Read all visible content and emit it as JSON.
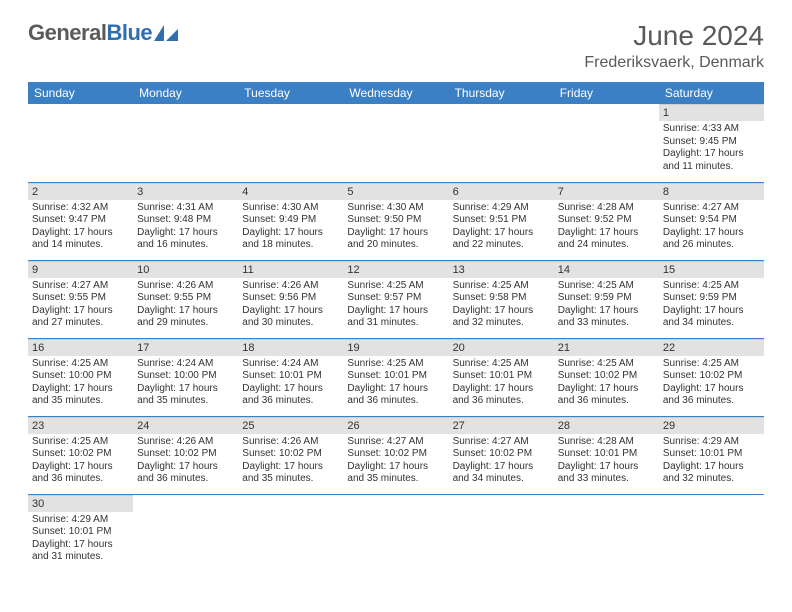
{
  "brand": {
    "part1": "General",
    "part2": "Blue"
  },
  "title": "June 2024",
  "location": "Frederiksvaerk, Denmark",
  "colors": {
    "header_bg": "#3b7fc4",
    "header_text": "#ffffff",
    "daynum_bg": "#e2e2e2",
    "body_text": "#333333",
    "title_text": "#5a5a5a",
    "rule": "#3b7fc4"
  },
  "weekdays": [
    "Sunday",
    "Monday",
    "Tuesday",
    "Wednesday",
    "Thursday",
    "Friday",
    "Saturday"
  ],
  "first_weekday_index": 6,
  "days": [
    {
      "n": 1,
      "sunrise": "4:33 AM",
      "sunset": "9:45 PM",
      "daylight": "17 hours and 11 minutes."
    },
    {
      "n": 2,
      "sunrise": "4:32 AM",
      "sunset": "9:47 PM",
      "daylight": "17 hours and 14 minutes."
    },
    {
      "n": 3,
      "sunrise": "4:31 AM",
      "sunset": "9:48 PM",
      "daylight": "17 hours and 16 minutes."
    },
    {
      "n": 4,
      "sunrise": "4:30 AM",
      "sunset": "9:49 PM",
      "daylight": "17 hours and 18 minutes."
    },
    {
      "n": 5,
      "sunrise": "4:30 AM",
      "sunset": "9:50 PM",
      "daylight": "17 hours and 20 minutes."
    },
    {
      "n": 6,
      "sunrise": "4:29 AM",
      "sunset": "9:51 PM",
      "daylight": "17 hours and 22 minutes."
    },
    {
      "n": 7,
      "sunrise": "4:28 AM",
      "sunset": "9:52 PM",
      "daylight": "17 hours and 24 minutes."
    },
    {
      "n": 8,
      "sunrise": "4:27 AM",
      "sunset": "9:54 PM",
      "daylight": "17 hours and 26 minutes."
    },
    {
      "n": 9,
      "sunrise": "4:27 AM",
      "sunset": "9:55 PM",
      "daylight": "17 hours and 27 minutes."
    },
    {
      "n": 10,
      "sunrise": "4:26 AM",
      "sunset": "9:55 PM",
      "daylight": "17 hours and 29 minutes."
    },
    {
      "n": 11,
      "sunrise": "4:26 AM",
      "sunset": "9:56 PM",
      "daylight": "17 hours and 30 minutes."
    },
    {
      "n": 12,
      "sunrise": "4:25 AM",
      "sunset": "9:57 PM",
      "daylight": "17 hours and 31 minutes."
    },
    {
      "n": 13,
      "sunrise": "4:25 AM",
      "sunset": "9:58 PM",
      "daylight": "17 hours and 32 minutes."
    },
    {
      "n": 14,
      "sunrise": "4:25 AM",
      "sunset": "9:59 PM",
      "daylight": "17 hours and 33 minutes."
    },
    {
      "n": 15,
      "sunrise": "4:25 AM",
      "sunset": "9:59 PM",
      "daylight": "17 hours and 34 minutes."
    },
    {
      "n": 16,
      "sunrise": "4:25 AM",
      "sunset": "10:00 PM",
      "daylight": "17 hours and 35 minutes."
    },
    {
      "n": 17,
      "sunrise": "4:24 AM",
      "sunset": "10:00 PM",
      "daylight": "17 hours and 35 minutes."
    },
    {
      "n": 18,
      "sunrise": "4:24 AM",
      "sunset": "10:01 PM",
      "daylight": "17 hours and 36 minutes."
    },
    {
      "n": 19,
      "sunrise": "4:25 AM",
      "sunset": "10:01 PM",
      "daylight": "17 hours and 36 minutes."
    },
    {
      "n": 20,
      "sunrise": "4:25 AM",
      "sunset": "10:01 PM",
      "daylight": "17 hours and 36 minutes."
    },
    {
      "n": 21,
      "sunrise": "4:25 AM",
      "sunset": "10:02 PM",
      "daylight": "17 hours and 36 minutes."
    },
    {
      "n": 22,
      "sunrise": "4:25 AM",
      "sunset": "10:02 PM",
      "daylight": "17 hours and 36 minutes."
    },
    {
      "n": 23,
      "sunrise": "4:25 AM",
      "sunset": "10:02 PM",
      "daylight": "17 hours and 36 minutes."
    },
    {
      "n": 24,
      "sunrise": "4:26 AM",
      "sunset": "10:02 PM",
      "daylight": "17 hours and 36 minutes."
    },
    {
      "n": 25,
      "sunrise": "4:26 AM",
      "sunset": "10:02 PM",
      "daylight": "17 hours and 35 minutes."
    },
    {
      "n": 26,
      "sunrise": "4:27 AM",
      "sunset": "10:02 PM",
      "daylight": "17 hours and 35 minutes."
    },
    {
      "n": 27,
      "sunrise": "4:27 AM",
      "sunset": "10:02 PM",
      "daylight": "17 hours and 34 minutes."
    },
    {
      "n": 28,
      "sunrise": "4:28 AM",
      "sunset": "10:01 PM",
      "daylight": "17 hours and 33 minutes."
    },
    {
      "n": 29,
      "sunrise": "4:29 AM",
      "sunset": "10:01 PM",
      "daylight": "17 hours and 32 minutes."
    },
    {
      "n": 30,
      "sunrise": "4:29 AM",
      "sunset": "10:01 PM",
      "daylight": "17 hours and 31 minutes."
    }
  ],
  "labels": {
    "sunrise": "Sunrise:",
    "sunset": "Sunset:",
    "daylight": "Daylight:"
  }
}
